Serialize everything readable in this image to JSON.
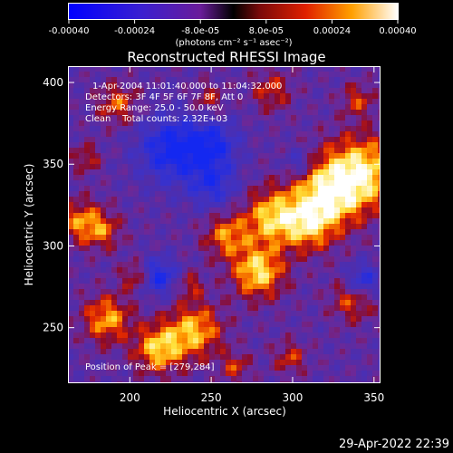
{
  "colorbar": {
    "ticks": [
      {
        "value": -0.0004,
        "label": "-0.00040"
      },
      {
        "value": -0.00024,
        "label": "-0.00024"
      },
      {
        "value": -8e-05,
        "label": "-8.0e-05"
      },
      {
        "value": 8e-05,
        "label": "8.0e-05"
      },
      {
        "value": 0.00024,
        "label": "0.00024"
      },
      {
        "value": 0.0004,
        "label": "0.00040"
      }
    ],
    "range": [
      -0.0004,
      0.0004
    ],
    "units_label": "(photons cm⁻² s⁻¹ asec⁻²)"
  },
  "chart_data": {
    "type": "heatmap",
    "title": "Reconstructed RHESSI Image",
    "xlabel": "Heliocentric X (arcsec)",
    "ylabel": "Heliocentric Y (arcsec)",
    "xlim": [
      162,
      354
    ],
    "ylim": [
      216,
      410
    ],
    "xticks": [
      {
        "value": 200,
        "label": "200"
      },
      {
        "value": 250,
        "label": "250"
      },
      {
        "value": 300,
        "label": "300"
      },
      {
        "value": 350,
        "label": "350"
      }
    ],
    "yticks": [
      {
        "value": 250,
        "label": "250"
      },
      {
        "value": 300,
        "label": "300"
      },
      {
        "value": 350,
        "label": "350"
      },
      {
        "value": 400,
        "label": "400"
      }
    ],
    "peak_position": [
      279,
      284
    ],
    "annotations": {
      "time_range": "1-Apr-2004 11:01:40.000 to 11:04:32.000",
      "detectors": "Detectors: 3F 4F 5F 6F 7F 8F, Att 0",
      "energy": "Energy Range: 25.0 - 50.0 keV",
      "clean": "Clean    Total counts: 2.32E+03",
      "peak": "Position of Peak = [279,284]"
    }
  },
  "footer": {
    "timestamp": "29-Apr-2022 22:39"
  }
}
